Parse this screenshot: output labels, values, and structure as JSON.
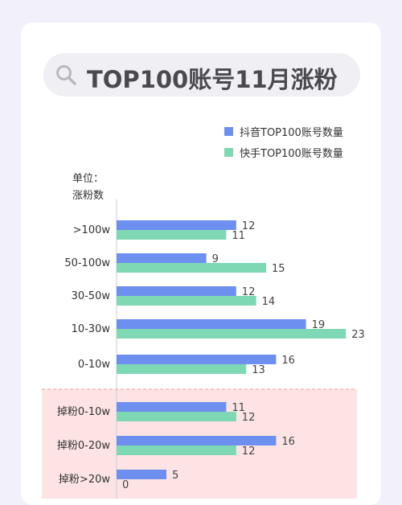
{
  "title": "TOP100账号11月涨粉",
  "icons": {
    "search": "search-icon"
  },
  "colors": {
    "page_bg": "#f1f0fb",
    "series_douyin": "#6d8ff0",
    "series_kuaishou": "#7fd8b4",
    "negative_zone": "#fde3e3",
    "negative_border": "#f29a9a"
  },
  "unit_label": [
    "单位：",
    "涨粉数"
  ],
  "chart_data": {
    "type": "bar",
    "orientation": "horizontal",
    "categories": [
      ">100w",
      "50-100w",
      "30-50w",
      "10-30w",
      "0-10w",
      "掉粉0-10w",
      "掉粉0-20w",
      "掉粉>20w"
    ],
    "series": [
      {
        "name": "抖音TOP100账号数量",
        "values": [
          12,
          9,
          12,
          19,
          16,
          11,
          16,
          5
        ]
      },
      {
        "name": "快手TOP100账号数量",
        "values": [
          11,
          15,
          14,
          23,
          13,
          12,
          12,
          0
        ]
      }
    ],
    "legend_position": "top-right",
    "grid": false,
    "highlight_categories": [
      "掉粉0-10w",
      "掉粉0-20w",
      "掉粉>20w"
    ]
  }
}
